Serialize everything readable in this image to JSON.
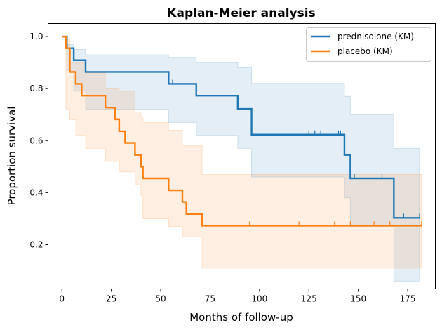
{
  "chart_data": {
    "type": "line",
    "subtype": "kaplan-meier step",
    "title": "Kaplan-Meier analysis",
    "xlabel": "Months of follow-up",
    "ylabel": "Proportion survival",
    "xlim": [
      -7,
      189
    ],
    "ylim": [
      0.03,
      1.05
    ],
    "xticks": [
      0,
      25,
      50,
      75,
      100,
      125,
      150,
      175
    ],
    "xtick_labels": [
      "0",
      "25",
      "50",
      "75",
      "100",
      "125",
      "150",
      "175"
    ],
    "yticks": [
      0.2,
      0.4,
      0.6,
      0.8,
      1.0
    ],
    "ytick_labels": [
      "0.2",
      "0.4",
      "0.6",
      "0.8",
      "1.0"
    ],
    "grid": false,
    "legend_position": "top-right",
    "series": [
      {
        "name": "prednisolone (KM)",
        "color": "#1f77b4",
        "steps": [
          [
            0,
            1.0
          ],
          [
            2.5,
            0.955
          ],
          [
            6,
            0.909
          ],
          [
            12,
            0.864
          ],
          [
            54,
            0.818
          ],
          [
            68,
            0.773
          ],
          [
            89,
            0.722
          ],
          [
            96,
            0.623
          ],
          [
            143,
            0.545
          ],
          [
            146,
            0.455
          ],
          [
            168,
            0.303
          ],
          [
            181,
            0.303
          ]
        ],
        "ci_steps": [
          [
            0,
            1.0,
            1.0
          ],
          [
            2.5,
            0.97,
            0.87
          ],
          [
            6,
            0.95,
            0.79
          ],
          [
            12,
            0.93,
            0.72
          ],
          [
            54,
            0.92,
            0.67
          ],
          [
            68,
            0.9,
            0.62
          ],
          [
            89,
            0.88,
            0.57
          ],
          [
            96,
            0.82,
            0.46
          ],
          [
            143,
            0.77,
            0.38
          ],
          [
            146,
            0.7,
            0.27
          ],
          [
            168,
            0.57,
            0.06
          ],
          [
            181,
            0.57,
            0.06
          ]
        ],
        "censored": [
          [
            56,
            0.818
          ],
          [
            125,
            0.623
          ],
          [
            128,
            0.623
          ],
          [
            131,
            0.623
          ],
          [
            140,
            0.623
          ],
          [
            141,
            0.623
          ],
          [
            148,
            0.455
          ],
          [
            162,
            0.455
          ],
          [
            173,
            0.303
          ],
          [
            181,
            0.303
          ]
        ]
      },
      {
        "name": "placebo (KM)",
        "color": "#ff7f0e",
        "steps": [
          [
            0,
            1.0
          ],
          [
            2,
            0.955
          ],
          [
            4,
            0.864
          ],
          [
            7,
            0.818
          ],
          [
            10,
            0.773
          ],
          [
            22,
            0.727
          ],
          [
            27,
            0.682
          ],
          [
            29,
            0.636
          ],
          [
            32,
            0.591
          ],
          [
            37,
            0.545
          ],
          [
            40,
            0.5
          ],
          [
            41,
            0.455
          ],
          [
            54,
            0.409
          ],
          [
            61,
            0.364
          ],
          [
            63,
            0.318
          ],
          [
            71,
            0.273
          ],
          [
            182,
            0.273
          ]
        ],
        "ci_steps": [
          [
            0,
            1.0,
            1.0
          ],
          [
            2,
            0.99,
            0.72
          ],
          [
            4,
            0.9,
            0.68
          ],
          [
            7,
            0.9,
            0.62
          ],
          [
            12,
            0.86,
            0.57
          ],
          [
            22,
            0.8,
            0.52
          ],
          [
            29,
            0.79,
            0.48
          ],
          [
            37,
            0.71,
            0.43
          ],
          [
            40,
            0.69,
            0.39
          ],
          [
            41,
            0.67,
            0.3
          ],
          [
            54,
            0.64,
            0.27
          ],
          [
            61,
            0.58,
            0.23
          ],
          [
            71,
            0.47,
            0.11
          ],
          [
            182,
            0.47,
            0.11
          ]
        ],
        "censored": [
          [
            95,
            0.273
          ],
          [
            120,
            0.273
          ],
          [
            138,
            0.273
          ],
          [
            146,
            0.273
          ],
          [
            158,
            0.273
          ],
          [
            166,
            0.273
          ],
          [
            182,
            0.273
          ]
        ]
      }
    ]
  }
}
